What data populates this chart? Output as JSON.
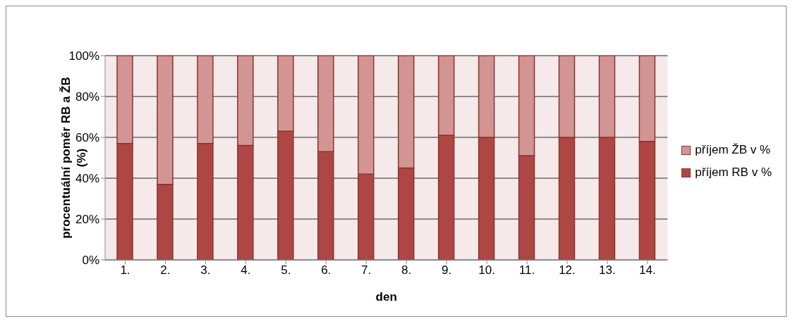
{
  "chart_data": {
    "type": "bar",
    "stacked": true,
    "xlabel": "den",
    "ylabel": "procentuální poměr RB a ŽB (%)",
    "categories": [
      "1.",
      "2.",
      "3.",
      "4.",
      "5.",
      "6.",
      "7.",
      "8.",
      "9.",
      "10.",
      "11.",
      "12.",
      "13.",
      "14."
    ],
    "series": [
      {
        "name": "příjem RB v %",
        "color": "#ae4744",
        "values": [
          57,
          37,
          57,
          56,
          63,
          53,
          42,
          45,
          61,
          60,
          51,
          60,
          60,
          58
        ]
      },
      {
        "name": "příjem ŽB v %",
        "color": "#d39593",
        "values": [
          43,
          63,
          43,
          44,
          37,
          47,
          58,
          55,
          39,
          40,
          49,
          40,
          40,
          42
        ]
      }
    ],
    "ylim": [
      0,
      100
    ],
    "yticks": [
      {
        "value": 0,
        "label": "0%"
      },
      {
        "value": 20,
        "label": "20%"
      },
      {
        "value": 40,
        "label": "40%"
      },
      {
        "value": 60,
        "label": "60%"
      },
      {
        "value": 80,
        "label": "80%"
      },
      {
        "value": 100,
        "label": "100%"
      }
    ],
    "grid": "y",
    "legend": "right"
  }
}
